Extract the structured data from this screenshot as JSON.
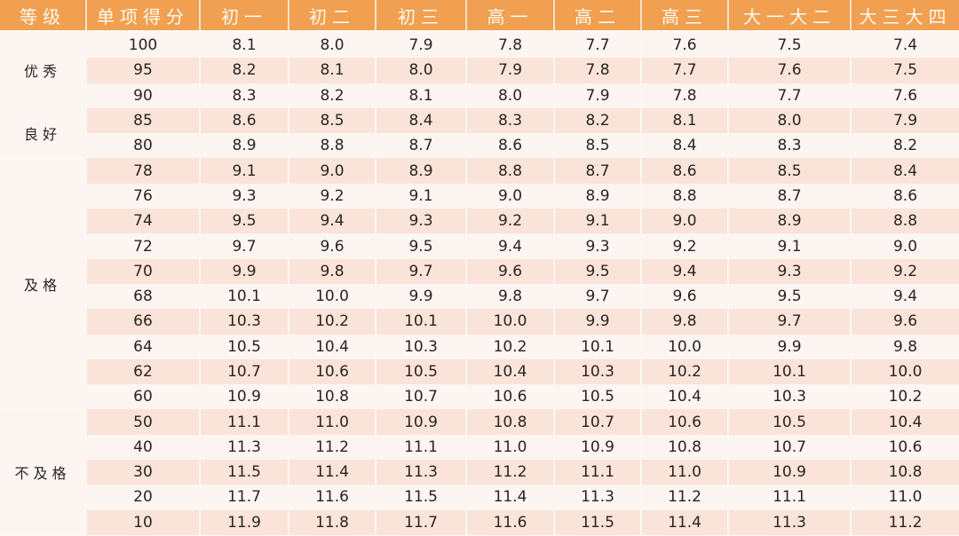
{
  "table": {
    "headers": [
      "等级",
      "单项得分",
      "初一",
      "初二",
      "初三",
      "高一",
      "高二",
      "高三",
      "大一大二",
      "大三大四"
    ],
    "groups": [
      {
        "grade": "优秀",
        "rows": [
          {
            "score": "100",
            "values": [
              "8.1",
              "8.0",
              "7.9",
              "7.8",
              "7.7",
              "7.6",
              "7.5",
              "7.4"
            ]
          },
          {
            "score": "95",
            "values": [
              "8.2",
              "8.1",
              "8.0",
              "7.9",
              "7.8",
              "7.7",
              "7.6",
              "7.5"
            ]
          },
          {
            "score": "90",
            "values": [
              "8.3",
              "8.2",
              "8.1",
              "8.0",
              "7.9",
              "7.8",
              "7.7",
              "7.6"
            ]
          }
        ]
      },
      {
        "grade": "良好",
        "rows": [
          {
            "score": "85",
            "values": [
              "8.6",
              "8.5",
              "8.4",
              "8.3",
              "8.2",
              "8.1",
              "8.0",
              "7.9"
            ]
          },
          {
            "score": "80",
            "values": [
              "8.9",
              "8.8",
              "8.7",
              "8.6",
              "8.5",
              "8.4",
              "8.3",
              "8.2"
            ]
          }
        ]
      },
      {
        "grade": "及格",
        "rows": [
          {
            "score": "78",
            "values": [
              "9.1",
              "9.0",
              "8.9",
              "8.8",
              "8.7",
              "8.6",
              "8.5",
              "8.4"
            ]
          },
          {
            "score": "76",
            "values": [
              "9.3",
              "9.2",
              "9.1",
              "9.0",
              "8.9",
              "8.8",
              "8.7",
              "8.6"
            ]
          },
          {
            "score": "74",
            "values": [
              "9.5",
              "9.4",
              "9.3",
              "9.2",
              "9.1",
              "9.0",
              "8.9",
              "8.8"
            ]
          },
          {
            "score": "72",
            "values": [
              "9.7",
              "9.6",
              "9.5",
              "9.4",
              "9.3",
              "9.2",
              "9.1",
              "9.0"
            ]
          },
          {
            "score": "70",
            "values": [
              "9.9",
              "9.8",
              "9.7",
              "9.6",
              "9.5",
              "9.4",
              "9.3",
              "9.2"
            ]
          },
          {
            "score": "68",
            "values": [
              "10.1",
              "10.0",
              "9.9",
              "9.8",
              "9.7",
              "9.6",
              "9.5",
              "9.4"
            ]
          },
          {
            "score": "66",
            "values": [
              "10.3",
              "10.2",
              "10.1",
              "10.0",
              "9.9",
              "9.8",
              "9.7",
              "9.6"
            ]
          },
          {
            "score": "64",
            "values": [
              "10.5",
              "10.4",
              "10.3",
              "10.2",
              "10.1",
              "10.0",
              "9.9",
              "9.8"
            ]
          },
          {
            "score": "62",
            "values": [
              "10.7",
              "10.6",
              "10.5",
              "10.4",
              "10.3",
              "10.2",
              "10.1",
              "10.0"
            ]
          },
          {
            "score": "60",
            "values": [
              "10.9",
              "10.8",
              "10.7",
              "10.6",
              "10.5",
              "10.4",
              "10.3",
              "10.2"
            ]
          }
        ]
      },
      {
        "grade": "不及格",
        "rows": [
          {
            "score": "50",
            "values": [
              "11.1",
              "11.0",
              "10.9",
              "10.8",
              "10.7",
              "10.6",
              "10.5",
              "10.4"
            ]
          },
          {
            "score": "40",
            "values": [
              "11.3",
              "11.2",
              "11.1",
              "11.0",
              "10.9",
              "10.8",
              "10.7",
              "10.6"
            ]
          },
          {
            "score": "30",
            "values": [
              "11.5",
              "11.4",
              "11.3",
              "11.2",
              "11.1",
              "11.0",
              "10.9",
              "10.8"
            ]
          },
          {
            "score": "20",
            "values": [
              "11.7",
              "11.6",
              "11.5",
              "11.4",
              "11.3",
              "11.2",
              "11.1",
              "11.0"
            ]
          },
          {
            "score": "10",
            "values": [
              "11.9",
              "11.8",
              "11.7",
              "11.6",
              "11.5",
              "11.4",
              "11.3",
              "11.2"
            ]
          }
        ]
      }
    ]
  },
  "colors": {
    "header_bg": "#f0a050",
    "header_text": "#fff8ee",
    "row_light": "#fcf5f1",
    "row_dark": "#fae3d8"
  }
}
